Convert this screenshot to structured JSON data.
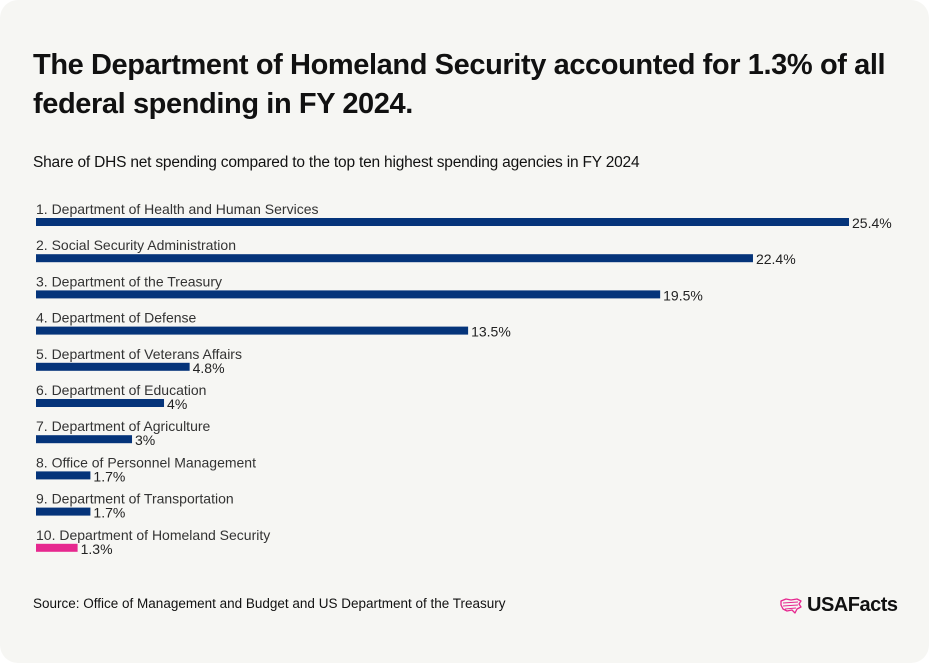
{
  "header": {
    "title": "The Department of Homeland Security accounted for 1.3% of all federal spending in FY 2024.",
    "subtitle": "Share of DHS net spending compared to the top ten highest spending agencies in FY 2024"
  },
  "footer": {
    "source": "Source: Office of Management and Budget and US Department of the Treasury",
    "logo_text": "USAFacts",
    "logo_icon": "usa-map-flag-icon"
  },
  "colors": {
    "default_bar": "#05347a",
    "highlight_bar": "#e6288f",
    "background": "#f6f6f3"
  },
  "chart_data": {
    "type": "bar",
    "orientation": "horizontal",
    "title": "The Department of Homeland Security accounted for 1.3% of all federal spending in FY 2024.",
    "subtitle": "Share of DHS net spending compared to the top ten highest spending agencies in FY 2024",
    "xlabel": "",
    "ylabel": "",
    "xlim": [
      0,
      25.4
    ],
    "grid": false,
    "legend": "none",
    "unit": "%",
    "categories": [
      "1. Department of Health and Human Services",
      "2. Social Security Administration",
      "3. Department of the Treasury",
      "4. Department of Defense",
      "5. Department of Veterans Affairs",
      "6. Department of Education",
      "7. Department of Agriculture",
      "8. Office of Personnel Management",
      "9. Department of Transportation",
      "10. Department of Homeland Security"
    ],
    "values": [
      25.4,
      22.4,
      19.5,
      13.5,
      4.8,
      4,
      3,
      1.7,
      1.7,
      1.3
    ],
    "value_labels": [
      "25.4%",
      "22.4%",
      "19.5%",
      "13.5%",
      "4.8%",
      "4%",
      "3%",
      "1.7%",
      "1.7%",
      "1.3%"
    ],
    "highlighted": [
      "10. Department of Homeland Security"
    ],
    "source": "Source: Office of Management and Budget and US Department of the Treasury"
  }
}
